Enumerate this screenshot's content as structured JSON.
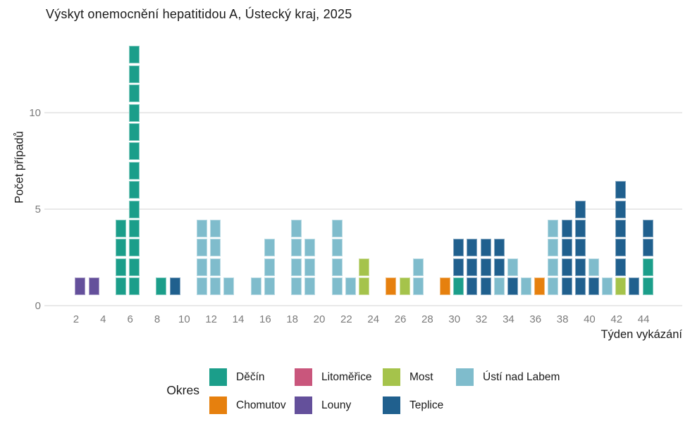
{
  "title": "Výskyt onemocnění hepatitidou A, Ústecký kraj, 2025",
  "axes": {
    "y_label": "Počet případů",
    "x_label": "Týden vykázání"
  },
  "legend": {
    "title": "Okres",
    "items": [
      {
        "label": "Děčín",
        "color": "#1b9e8a"
      },
      {
        "label": "Litoměřice",
        "color": "#c9567c"
      },
      {
        "label": "Most",
        "color": "#a5c34b"
      },
      {
        "label": "Ústí nad Labem",
        "color": "#7fbccc"
      },
      {
        "label": "Chomutov",
        "color": "#e6800e"
      },
      {
        "label": "Louny",
        "color": "#64509b"
      },
      {
        "label": "Teplice",
        "color": "#20608e"
      }
    ]
  },
  "chart_data": {
    "type": "bar",
    "stacked": true,
    "title": "Výskyt onemocnění hepatitidou A, Ústecký kraj, 2025",
    "xlabel": "Týden vykázání",
    "ylabel": "Počet případů",
    "x_range": [
      1,
      45
    ],
    "ylim": [
      0,
      13.5
    ],
    "y_ticks": [
      0,
      5,
      10
    ],
    "x_tick_labels": [
      "2",
      "4",
      "6",
      "8",
      "10",
      "12",
      "14",
      "16",
      "18",
      "20",
      "22",
      "24",
      "26",
      "28",
      "30",
      "32",
      "34",
      "36",
      "38",
      "40",
      "42",
      "44"
    ],
    "grid": "horizontal-major-only",
    "legend_position": "bottom",
    "note_unit": "one square = one case",
    "district_colors": {
      "Děčín": "#1b9e8a",
      "Chomutov": "#e6800e",
      "Litoměřice": "#c9567c",
      "Louny": "#64509b",
      "Most": "#a5c34b",
      "Teplice": "#20608e",
      "Ústí nad Labem": "#7fbccc"
    },
    "weeks": [
      {
        "week": 2,
        "segments": [
          {
            "district": "Louny",
            "cases": 1
          }
        ]
      },
      {
        "week": 3,
        "segments": [
          {
            "district": "Louny",
            "cases": 1
          }
        ]
      },
      {
        "week": 5,
        "segments": [
          {
            "district": "Děčín",
            "cases": 4
          }
        ]
      },
      {
        "week": 6,
        "segments": [
          {
            "district": "Děčín",
            "cases": 13
          }
        ]
      },
      {
        "week": 8,
        "segments": [
          {
            "district": "Děčín",
            "cases": 1
          }
        ]
      },
      {
        "week": 9,
        "segments": [
          {
            "district": "Teplice",
            "cases": 1
          }
        ]
      },
      {
        "week": 11,
        "segments": [
          {
            "district": "Ústí nad Labem",
            "cases": 4
          }
        ]
      },
      {
        "week": 12,
        "segments": [
          {
            "district": "Ústí nad Labem",
            "cases": 4
          }
        ]
      },
      {
        "week": 13,
        "segments": [
          {
            "district": "Ústí nad Labem",
            "cases": 1
          }
        ]
      },
      {
        "week": 15,
        "segments": [
          {
            "district": "Ústí nad Labem",
            "cases": 1
          }
        ]
      },
      {
        "week": 16,
        "segments": [
          {
            "district": "Ústí nad Labem",
            "cases": 3
          }
        ]
      },
      {
        "week": 18,
        "segments": [
          {
            "district": "Ústí nad Labem",
            "cases": 4
          }
        ]
      },
      {
        "week": 19,
        "segments": [
          {
            "district": "Ústí nad Labem",
            "cases": 3
          }
        ]
      },
      {
        "week": 21,
        "segments": [
          {
            "district": "Ústí nad Labem",
            "cases": 4
          }
        ]
      },
      {
        "week": 22,
        "segments": [
          {
            "district": "Ústí nad Labem",
            "cases": 1
          }
        ]
      },
      {
        "week": 23,
        "segments": [
          {
            "district": "Most",
            "cases": 2
          }
        ]
      },
      {
        "week": 25,
        "segments": [
          {
            "district": "Chomutov",
            "cases": 1
          }
        ]
      },
      {
        "week": 26,
        "segments": [
          {
            "district": "Most",
            "cases": 1
          }
        ]
      },
      {
        "week": 27,
        "segments": [
          {
            "district": "Ústí nad Labem",
            "cases": 2
          }
        ]
      },
      {
        "week": 29,
        "segments": [
          {
            "district": "Chomutov",
            "cases": 1
          }
        ]
      },
      {
        "week": 30,
        "segments": [
          {
            "district": "Děčín",
            "cases": 1
          },
          {
            "district": "Teplice",
            "cases": 2
          }
        ]
      },
      {
        "week": 31,
        "segments": [
          {
            "district": "Teplice",
            "cases": 3
          }
        ]
      },
      {
        "week": 32,
        "segments": [
          {
            "district": "Teplice",
            "cases": 3
          }
        ]
      },
      {
        "week": 33,
        "segments": [
          {
            "district": "Ústí nad Labem",
            "cases": 1
          },
          {
            "district": "Teplice",
            "cases": 2
          }
        ]
      },
      {
        "week": 34,
        "segments": [
          {
            "district": "Teplice",
            "cases": 1
          },
          {
            "district": "Ústí nad Labem",
            "cases": 1
          }
        ]
      },
      {
        "week": 35,
        "segments": [
          {
            "district": "Ústí nad Labem",
            "cases": 1
          }
        ]
      },
      {
        "week": 36,
        "segments": [
          {
            "district": "Chomutov",
            "cases": 1
          }
        ]
      },
      {
        "week": 37,
        "segments": [
          {
            "district": "Ústí nad Labem",
            "cases": 4
          }
        ]
      },
      {
        "week": 38,
        "segments": [
          {
            "district": "Teplice",
            "cases": 4
          }
        ]
      },
      {
        "week": 39,
        "segments": [
          {
            "district": "Teplice",
            "cases": 5
          }
        ]
      },
      {
        "week": 40,
        "segments": [
          {
            "district": "Teplice",
            "cases": 1
          },
          {
            "district": "Ústí nad Labem",
            "cases": 1
          }
        ]
      },
      {
        "week": 41,
        "segments": [
          {
            "district": "Ústí nad Labem",
            "cases": 1
          }
        ]
      },
      {
        "week": 42,
        "segments": [
          {
            "district": "Most",
            "cases": 1
          },
          {
            "district": "Teplice",
            "cases": 5
          }
        ]
      },
      {
        "week": 43,
        "segments": [
          {
            "district": "Teplice",
            "cases": 1
          }
        ]
      },
      {
        "week": 44,
        "segments": [
          {
            "district": "Děčín",
            "cases": 2
          },
          {
            "district": "Teplice",
            "cases": 2
          }
        ]
      }
    ]
  }
}
